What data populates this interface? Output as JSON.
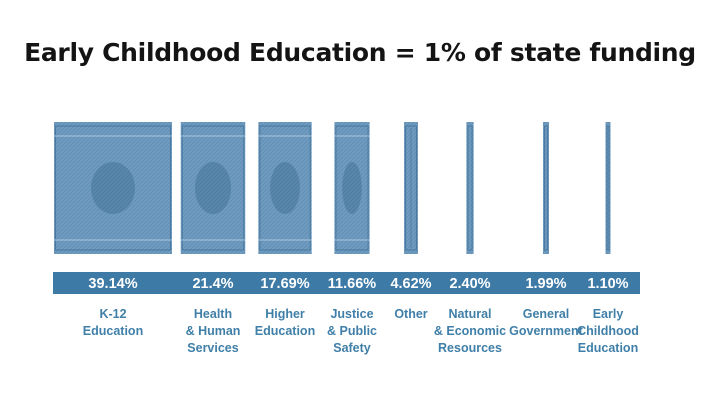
{
  "chart_data": {
    "type": "bar",
    "title": "Early Childhood Education = 1% of state funding",
    "categories": [
      [
        "K-12",
        "Education"
      ],
      [
        "Health",
        "& Human",
        "Services"
      ],
      [
        "Higher",
        "Education"
      ],
      [
        "Justice",
        "& Public",
        "Safety"
      ],
      [
        "Other"
      ],
      [
        "Natural",
        "& Economic",
        "Resources"
      ],
      [
        "General",
        "Government"
      ],
      [
        "Early",
        "Childhood",
        "Education"
      ]
    ],
    "value_labels": [
      "39.14%",
      "21.4%",
      "17.69%",
      "11.66%",
      "4.62%",
      "2.40%",
      "1.99%",
      "1.10%"
    ],
    "values": [
      39.14,
      21.4,
      17.69,
      11.66,
      4.62,
      2.4,
      1.99,
      1.1
    ],
    "unit": "%",
    "grid": false,
    "legend": "none",
    "colors": {
      "bill_fill": "#6f9bbf",
      "bill_dark": "#2f5f86",
      "bill_light": "#a9c6dc",
      "label_band": "#3e7aa6",
      "category_text": "#3f7fa8"
    },
    "decoration": "slices-of-a-dollar-bill-icon"
  }
}
